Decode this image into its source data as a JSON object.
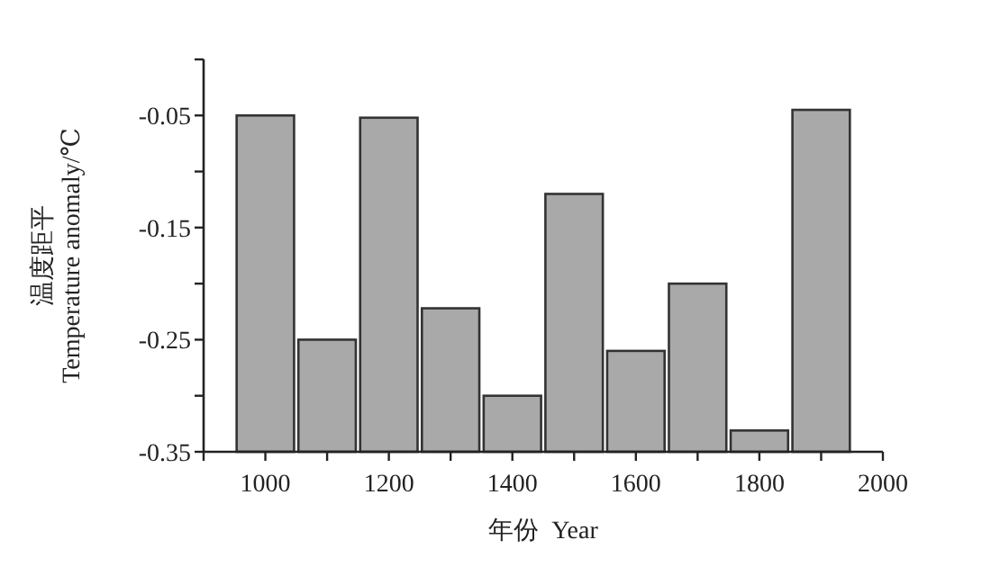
{
  "chart_data": {
    "type": "bar",
    "xlabel": "年份  Year",
    "ylabel": "温度距平 Temperature anomaly/℃",
    "x": [
      1000,
      1100,
      1200,
      1300,
      1400,
      1500,
      1600,
      1700,
      1800,
      1900
    ],
    "base": [
      -0.35,
      -0.35,
      -0.35,
      -0.35,
      -0.35,
      -0.35,
      -0.35,
      -0.35,
      -0.35,
      -0.35
    ],
    "values": [
      0.3,
      0.1,
      0.298,
      0.128,
      0.05,
      0.23,
      0.09,
      0.15,
      0.019,
      0.305
    ],
    "color": "#a9a9a9",
    "xlim": [
      900,
      2000
    ],
    "xticks": [
      {
        "value": 900,
        "label": null
      },
      1000,
      {
        "value": 1100,
        "label": null
      },
      1200,
      {
        "value": 1300,
        "label": null
      },
      1400,
      {
        "value": 1500,
        "label": null
      },
      1600,
      {
        "value": 1700,
        "label": null
      },
      1800,
      {
        "value": 1900,
        "label": null
      },
      2000
    ],
    "ylim": [
      -0.35,
      0
    ],
    "yticks": [
      -0.35,
      {
        "value": -0.3,
        "label": null
      },
      -0.25,
      {
        "value": -0.2,
        "label": null
      },
      -0.15,
      {
        "value": -0.1,
        "label": null
      },
      -0.05,
      {
        "value": 0,
        "label": null
      }
    ],
    "grid": false
  }
}
